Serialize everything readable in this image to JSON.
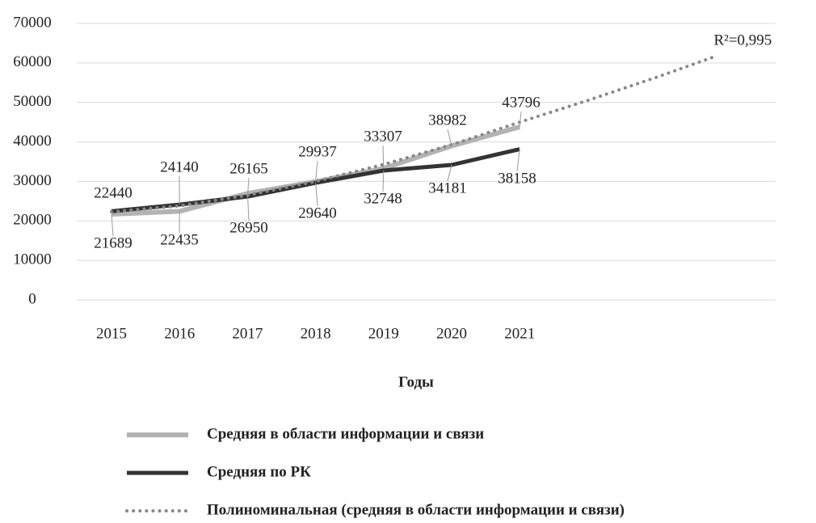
{
  "chart_data": {
    "type": "line",
    "x_label": "Годы",
    "categories": [
      2015,
      2016,
      2017,
      2018,
      2019,
      2020,
      2021
    ],
    "series": [
      {
        "name": "Средняя в области информации и связи",
        "color": "#b3b3b3",
        "values": [
          21689,
          22435,
          26950,
          29937,
          33307,
          38982,
          43796
        ]
      },
      {
        "name": "Средняя по РК",
        "color": "#333333",
        "values": [
          22440,
          24140,
          26165,
          29640,
          32748,
          34181,
          38158
        ]
      }
    ],
    "trendline": {
      "name": "Полиноминальная (средняя в области информации и связи)",
      "color": "#888888",
      "style": "dotted",
      "x": [
        2015,
        2016,
        2017,
        2018,
        2019,
        2020,
        2021,
        2022,
        2023,
        2023.9
      ],
      "values": [
        22300,
        23800,
        26500,
        30000,
        34300,
        39300,
        45000,
        50500,
        56300,
        61800
      ]
    },
    "annotation": "R²=0,995",
    "ylim": [
      0,
      70000
    ],
    "yticks": [
      0,
      10000,
      20000,
      30000,
      40000,
      50000,
      60000,
      70000
    ],
    "grid": true,
    "legend": "bottom"
  }
}
